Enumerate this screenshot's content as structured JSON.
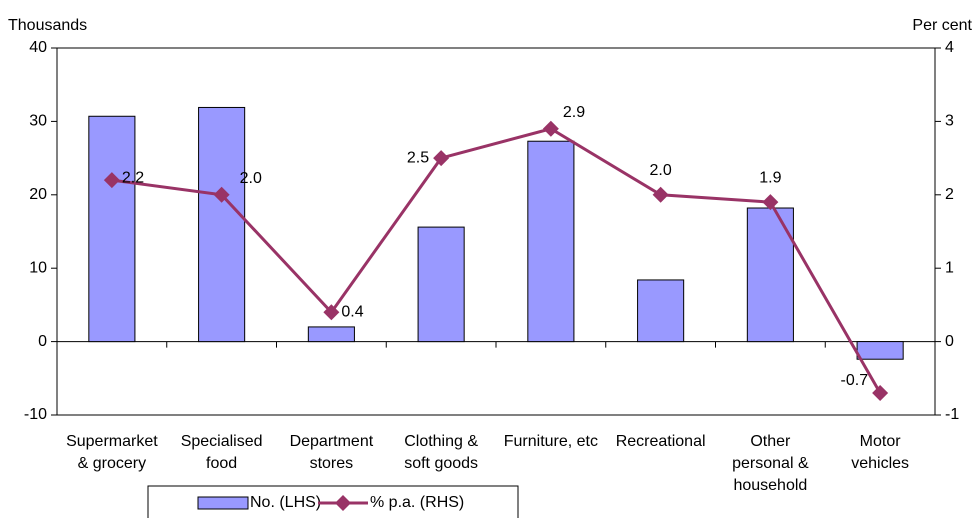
{
  "chart_data": {
    "type": "bar_line",
    "y_axis_label": "Thousands",
    "y2_axis_label": "Per cent",
    "categories": [
      [
        "Supermarket",
        "& grocery"
      ],
      [
        "Specialised",
        "food"
      ],
      [
        "Department",
        "stores"
      ],
      [
        "Clothing &",
        "soft goods"
      ],
      [
        "Furniture, etc"
      ],
      [
        "Recreational"
      ],
      [
        "Other",
        "personal &",
        "household"
      ],
      [
        "Motor",
        "vehicles"
      ]
    ],
    "series": [
      {
        "name": "No. (LHS)",
        "type": "bar",
        "color": "#9999ff",
        "values": [
          30.7,
          31.9,
          2.0,
          15.6,
          27.3,
          8.4,
          18.2,
          -2.4
        ]
      },
      {
        "name": "% p.a. (RHS)",
        "type": "line",
        "axis": "y2",
        "color": "#993366",
        "values": [
          2.2,
          2.0,
          0.4,
          2.5,
          2.9,
          2.0,
          1.9,
          -0.7
        ],
        "value_labels": [
          "2.2",
          "2.0",
          "0.4",
          "2.5",
          "2.9",
          "2.0",
          "1.9",
          "-0.7"
        ]
      }
    ],
    "ylim": [
      -10,
      40
    ],
    "yticks": [
      -10,
      0,
      10,
      20,
      30,
      40
    ],
    "y2lim": [
      -1,
      4
    ],
    "y2ticks": [
      -1,
      0,
      1,
      2,
      3,
      4
    ],
    "grid": false,
    "legend": "bottom"
  }
}
